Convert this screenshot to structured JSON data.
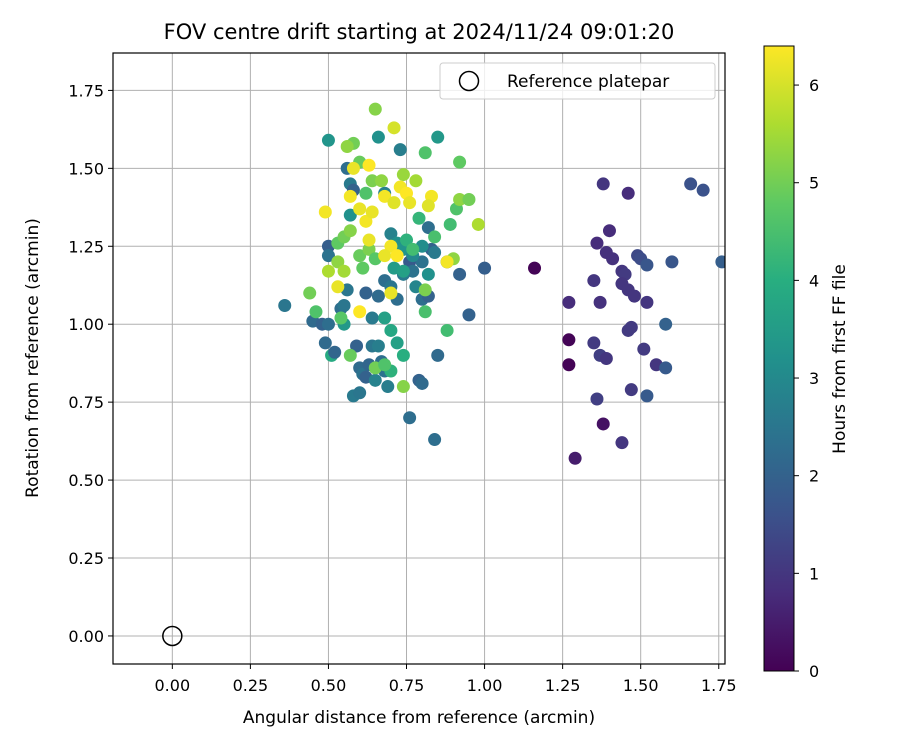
{
  "chart_data": {
    "type": "scatter",
    "title": "FOV centre drift starting at 2024/11/24 09:01:20",
    "xlabel": "Angular distance from reference (arcmin)",
    "ylabel": "Rotation from reference (arcmin)",
    "xlim": [
      -0.19,
      1.77
    ],
    "ylim": [
      -0.09,
      1.87
    ],
    "xticks": [
      0.0,
      0.25,
      0.5,
      0.75,
      1.0,
      1.25,
      1.5,
      1.75
    ],
    "yticks": [
      0.0,
      0.25,
      0.5,
      0.75,
      1.0,
      1.25,
      1.5,
      1.75
    ],
    "xtick_labels": [
      "0.00",
      "0.25",
      "0.50",
      "0.75",
      "1.00",
      "1.25",
      "1.50",
      "1.75"
    ],
    "ytick_labels": [
      "0.00",
      "0.25",
      "0.50",
      "0.75",
      "1.00",
      "1.25",
      "1.50",
      "1.75"
    ],
    "grid": true,
    "colormap": "viridis",
    "colorbar": {
      "label": "Hours from first FF file",
      "range": [
        0,
        6.4
      ],
      "ticks": [
        0,
        1,
        2,
        3,
        4,
        5,
        6
      ],
      "tick_labels": [
        "0",
        "1",
        "2",
        "3",
        "4",
        "5",
        "6"
      ]
    },
    "legend": {
      "position": "upper right",
      "entries": [
        "Reference platepar"
      ]
    },
    "reference": {
      "name": "Reference platepar",
      "x": 0.0,
      "y": 0.0,
      "marker": "hollow circle"
    },
    "series": [
      {
        "points": [
          [
            1.16,
            1.18,
            0.05
          ],
          [
            1.27,
            0.95,
            0.05
          ],
          [
            1.27,
            0.87,
            0.05
          ],
          [
            1.38,
            0.68,
            0.3
          ],
          [
            1.29,
            0.57,
            0.5
          ],
          [
            1.27,
            1.07,
            0.8
          ],
          [
            1.36,
            1.26,
            0.8
          ],
          [
            1.39,
            1.23,
            0.9
          ],
          [
            1.4,
            1.3,
            0.8
          ],
          [
            1.46,
            1.42,
            0.8
          ],
          [
            1.38,
            1.45,
            1.0
          ],
          [
            1.35,
            1.14,
            1.0
          ],
          [
            1.37,
            1.07,
            0.9
          ],
          [
            1.41,
            1.21,
            0.9
          ],
          [
            1.44,
            1.17,
            1.0
          ],
          [
            1.45,
            1.16,
            1.1
          ],
          [
            1.44,
            1.13,
            1.0
          ],
          [
            1.46,
            1.11,
            1.0
          ],
          [
            1.48,
            1.09,
            1.0
          ],
          [
            1.52,
            1.07,
            1.0
          ],
          [
            1.46,
            0.98,
            1.1
          ],
          [
            1.47,
            0.99,
            1.1
          ],
          [
            1.51,
            0.92,
            1.1
          ],
          [
            1.55,
            0.87,
            1.0
          ],
          [
            1.35,
            0.94,
            1.1
          ],
          [
            1.37,
            0.9,
            1.2
          ],
          [
            1.39,
            0.89,
            1.0
          ],
          [
            1.36,
            0.76,
            1.2
          ],
          [
            1.47,
            0.79,
            1.1
          ],
          [
            1.44,
            0.62,
            1.0
          ],
          [
            1.49,
            1.22,
            1.4
          ],
          [
            1.5,
            1.21,
            1.5
          ],
          [
            1.52,
            1.19,
            1.7
          ],
          [
            1.6,
            1.2,
            1.7
          ],
          [
            1.58,
            0.86,
            1.8
          ],
          [
            1.52,
            0.77,
            1.8
          ],
          [
            1.58,
            1.0,
            2.0
          ],
          [
            1.66,
            1.45,
            1.6
          ],
          [
            1.7,
            1.43,
            1.6
          ],
          [
            1.76,
            1.2,
            1.9
          ],
          [
            0.36,
            1.06,
            2.5
          ],
          [
            0.45,
            1.01,
            2.2
          ],
          [
            0.48,
            1.0,
            2.0
          ],
          [
            0.49,
            0.94,
            2.2
          ],
          [
            0.5,
            1.0,
            2.3
          ],
          [
            0.5,
            1.25,
            1.9
          ],
          [
            0.5,
            1.22,
            2.4
          ],
          [
            0.51,
            0.9,
            3.9
          ],
          [
            0.52,
            0.91,
            2.1
          ],
          [
            0.54,
            1.05,
            2.3
          ],
          [
            0.55,
            1.06,
            2.5
          ],
          [
            0.55,
            1.0,
            3.4
          ],
          [
            0.56,
            1.11,
            2.5
          ],
          [
            0.57,
            1.45,
            2.6
          ],
          [
            0.56,
            1.5,
            2.3
          ],
          [
            0.58,
            1.43,
            2.0
          ],
          [
            0.57,
            1.35,
            3.2
          ],
          [
            0.58,
            0.77,
            2.6
          ],
          [
            0.6,
            0.78,
            2.5
          ],
          [
            0.59,
            0.93,
            2.0
          ],
          [
            0.6,
            0.86,
            2.2
          ],
          [
            0.61,
            0.84,
            2.4
          ],
          [
            0.62,
            0.83,
            2.0
          ],
          [
            0.63,
            0.87,
            2.1
          ],
          [
            0.64,
            0.93,
            2.5
          ],
          [
            0.65,
            0.82,
            2.8
          ],
          [
            0.66,
            0.93,
            2.7
          ],
          [
            0.67,
            0.88,
            2.3
          ],
          [
            0.68,
            0.85,
            2.4
          ],
          [
            0.69,
            0.8,
            2.7
          ],
          [
            0.62,
            1.1,
            2.0
          ],
          [
            0.64,
            1.02,
            2.6
          ],
          [
            0.66,
            1.09,
            2.2
          ],
          [
            0.68,
            1.14,
            2.3
          ],
          [
            0.7,
            1.12,
            2.5
          ],
          [
            0.72,
            1.08,
            2.3
          ],
          [
            0.74,
            1.16,
            2.6
          ],
          [
            0.76,
            1.2,
            1.8
          ],
          [
            0.77,
            1.17,
            2.4
          ],
          [
            0.78,
            1.12,
            2.9
          ],
          [
            0.8,
            1.08,
            2.3
          ],
          [
            0.82,
            1.09,
            2.0
          ],
          [
            0.79,
            0.82,
            2.0
          ],
          [
            0.8,
            0.81,
            2.2
          ],
          [
            0.76,
            0.7,
            2.3
          ],
          [
            0.84,
            0.63,
            2.3
          ],
          [
            0.85,
            0.9,
            2.2
          ],
          [
            0.88,
            1.2,
            1.9
          ],
          [
            0.92,
            1.16,
            2.0
          ],
          [
            0.95,
            1.03,
            2.0
          ],
          [
            1.0,
            1.18,
            1.9
          ],
          [
            0.82,
            1.31,
            2.3
          ],
          [
            0.83,
            1.24,
            2.0
          ],
          [
            0.8,
            1.2,
            2.4
          ],
          [
            0.84,
            1.23,
            2.6
          ],
          [
            0.73,
            1.56,
            2.7
          ],
          [
            0.66,
            1.6,
            3.2
          ],
          [
            0.5,
            1.59,
            3.3
          ],
          [
            0.85,
            1.6,
            3.4
          ],
          [
            0.68,
            1.42,
            2.8
          ],
          [
            0.7,
            1.29,
            2.8
          ],
          [
            0.72,
            1.26,
            3.2
          ],
          [
            0.74,
            1.24,
            3.3
          ],
          [
            0.71,
            1.18,
            3.5
          ],
          [
            0.74,
            1.17,
            3.6
          ],
          [
            0.77,
            1.22,
            3.0
          ],
          [
            0.8,
            1.25,
            3.1
          ],
          [
            0.82,
            1.16,
            3.2
          ],
          [
            0.68,
            1.02,
            3.6
          ],
          [
            0.7,
            0.98,
            3.8
          ],
          [
            0.72,
            0.94,
            3.6
          ],
          [
            0.74,
            0.9,
            4.0
          ],
          [
            0.7,
            0.85,
            4.1
          ],
          [
            0.88,
            0.98,
            4.4
          ],
          [
            0.81,
            1.04,
            4.5
          ],
          [
            0.79,
            1.34,
            4.2
          ],
          [
            0.75,
            1.27,
            4.1
          ],
          [
            0.77,
            1.24,
            4.4
          ],
          [
            0.84,
            1.28,
            4.5
          ],
          [
            0.91,
            1.37,
            4.6
          ],
          [
            0.89,
            1.32,
            4.4
          ],
          [
            0.92,
            1.52,
            4.8
          ],
          [
            0.81,
            1.55,
            4.6
          ],
          [
            0.6,
            1.52,
            4.9
          ],
          [
            0.62,
            1.42,
            4.6
          ],
          [
            0.58,
            1.58,
            5.0
          ],
          [
            0.56,
            1.57,
            5.3
          ],
          [
            0.65,
            1.69,
            5.2
          ],
          [
            0.74,
            1.48,
            5.4
          ],
          [
            0.78,
            1.46,
            5.5
          ],
          [
            0.64,
            1.46,
            5.1
          ],
          [
            0.67,
            1.46,
            5.3
          ],
          [
            0.53,
            1.26,
            4.8
          ],
          [
            0.55,
            1.28,
            5.0
          ],
          [
            0.57,
            1.3,
            5.2
          ],
          [
            0.6,
            1.22,
            4.9
          ],
          [
            0.63,
            1.24,
            5.1
          ],
          [
            0.65,
            1.21,
            4.7
          ],
          [
            0.61,
            1.18,
            4.8
          ],
          [
            0.53,
            1.2,
            5.3
          ],
          [
            0.55,
            1.17,
            5.5
          ],
          [
            0.5,
            1.17,
            5.6
          ],
          [
            0.44,
            1.1,
            5.0
          ],
          [
            0.46,
            1.04,
            4.6
          ],
          [
            0.54,
            1.02,
            4.7
          ],
          [
            0.57,
            0.9,
            4.9
          ],
          [
            0.65,
            0.86,
            5.0
          ],
          [
            0.68,
            0.87,
            4.6
          ],
          [
            0.74,
            0.8,
            5.2
          ],
          [
            0.81,
            1.11,
            5.1
          ],
          [
            0.92,
            1.4,
            5.3
          ],
          [
            0.95,
            1.4,
            5.0
          ],
          [
            0.9,
            1.21,
            5.3
          ],
          [
            0.98,
            1.32,
            5.6
          ],
          [
            0.71,
            1.63,
            6.0
          ],
          [
            0.58,
            1.5,
            6.2
          ],
          [
            0.63,
            1.51,
            6.4
          ],
          [
            0.57,
            1.41,
            6.3
          ],
          [
            0.6,
            1.37,
            6.2
          ],
          [
            0.62,
            1.33,
            6.3
          ],
          [
            0.64,
            1.36,
            6.2
          ],
          [
            0.68,
            1.41,
            6.3
          ],
          [
            0.71,
            1.39,
            6.1
          ],
          [
            0.73,
            1.44,
            6.3
          ],
          [
            0.75,
            1.42,
            6.4
          ],
          [
            0.76,
            1.39,
            6.2
          ],
          [
            0.83,
            1.41,
            6.3
          ],
          [
            0.82,
            1.38,
            6.1
          ],
          [
            0.63,
            1.27,
            6.2
          ],
          [
            0.7,
            1.25,
            6.3
          ],
          [
            0.68,
            1.22,
            6.2
          ],
          [
            0.72,
            1.22,
            6.4
          ],
          [
            0.49,
            1.36,
            6.3
          ],
          [
            0.53,
            1.12,
            6.2
          ],
          [
            0.6,
            1.04,
            6.4
          ],
          [
            0.7,
            1.1,
            6.2
          ],
          [
            0.88,
            1.2,
            6.3
          ]
        ]
      }
    ]
  }
}
